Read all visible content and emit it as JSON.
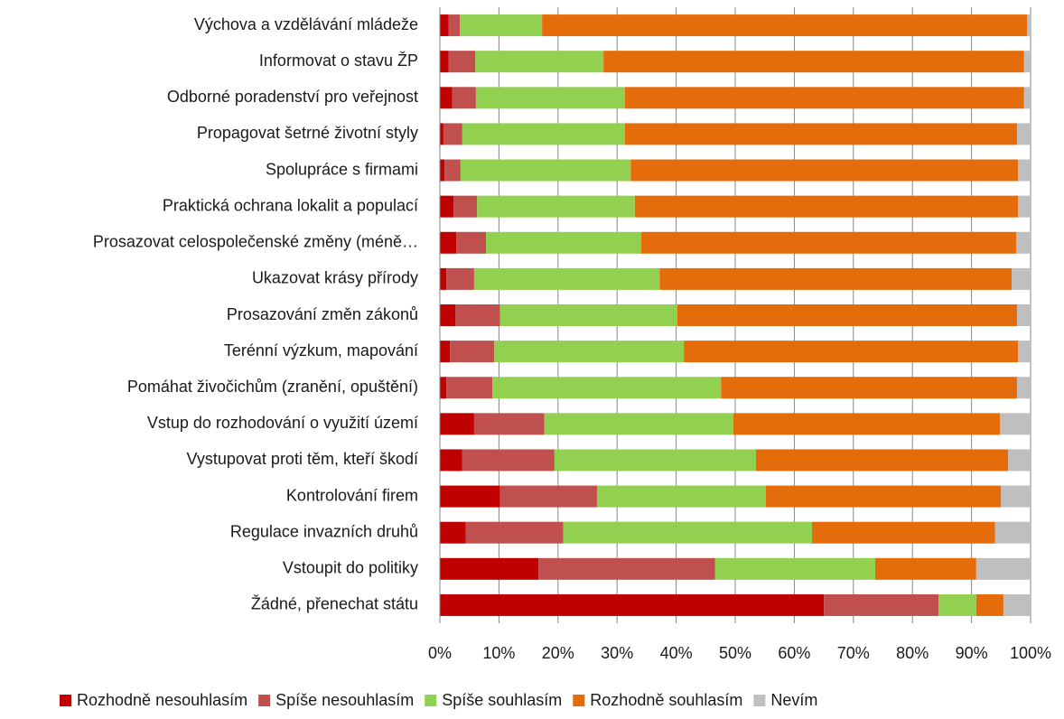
{
  "chart_data": {
    "type": "stacked_barh",
    "categories": [
      "Výchova a vzdělávání mládeže",
      "Informovat o stavu ŽP",
      "Odborné poradenství pro veřejnost",
      "Propagovat šetrné životní styly",
      "Spolupráce s firmami",
      "Praktická ochrana lokalit a populací",
      "Prosazovat celospolečenské změny (méně…",
      "Ukazovat krásy přírody",
      "Prosazování změn zákonů",
      "Terénní výzkum, mapování",
      "Pomáhat živočichům (zranění, opuštění)",
      "Vstup do rozhodování o využití území",
      "Vystupovat proti těm, kteří škodí",
      "Kontrolování firem",
      "Regulace invazních druhů",
      "Vstoupit do politiky",
      "Žádné, přenechat státu"
    ],
    "series": [
      {
        "name": "Rozhodně nesouhlasím",
        "color": "#c00000",
        "values": [
          1.5,
          1.5,
          2.1,
          0.6,
          0.8,
          2.3,
          2.8,
          1.1,
          2.6,
          1.7,
          1.1,
          5.8,
          3.8,
          10.2,
          4.4,
          16.7,
          65.0
        ]
      },
      {
        "name": "Spíše nesouhlasím",
        "color": "#c0504d",
        "values": [
          1.9,
          4.5,
          4.0,
          3.2,
          2.7,
          4.0,
          5.0,
          4.7,
          7.6,
          7.5,
          7.8,
          11.9,
          15.6,
          16.4,
          16.5,
          29.9,
          19.4
        ]
      },
      {
        "name": "Spíše souhlasím",
        "color": "#92d050",
        "values": [
          13.9,
          21.7,
          25.2,
          27.5,
          28.8,
          26.7,
          26.3,
          31.4,
          30.0,
          32.1,
          38.7,
          32.0,
          34.1,
          28.6,
          42.1,
          27.1,
          6.4
        ]
      },
      {
        "name": "Rozhodně souhlasím",
        "color": "#e46c0a",
        "values": [
          82.1,
          71.2,
          67.6,
          66.4,
          65.6,
          64.9,
          63.5,
          59.6,
          57.5,
          56.6,
          50.1,
          45.1,
          42.7,
          39.8,
          31.0,
          17.1,
          4.6
        ]
      },
      {
        "name": "Nevím",
        "color": "#bfbfbf",
        "values": [
          0.6,
          1.1,
          1.1,
          2.3,
          2.1,
          2.1,
          2.4,
          3.2,
          2.3,
          2.1,
          2.3,
          5.2,
          3.8,
          5.0,
          6.0,
          9.2,
          4.6
        ]
      }
    ],
    "xlim": [
      0,
      100
    ],
    "xticks": [
      {
        "value": 0,
        "label": "0%"
      },
      {
        "value": 10,
        "label": "10%"
      },
      {
        "value": 20,
        "label": "20%"
      },
      {
        "value": 30,
        "label": "30%"
      },
      {
        "value": 40,
        "label": "40%"
      },
      {
        "value": 50,
        "label": "50%"
      },
      {
        "value": 60,
        "label": "60%"
      },
      {
        "value": 70,
        "label": "70%"
      },
      {
        "value": 80,
        "label": "80%"
      },
      {
        "value": 90,
        "label": "90%"
      },
      {
        "value": 100,
        "label": "100%"
      }
    ],
    "grid": true,
    "legend": "bottom"
  }
}
